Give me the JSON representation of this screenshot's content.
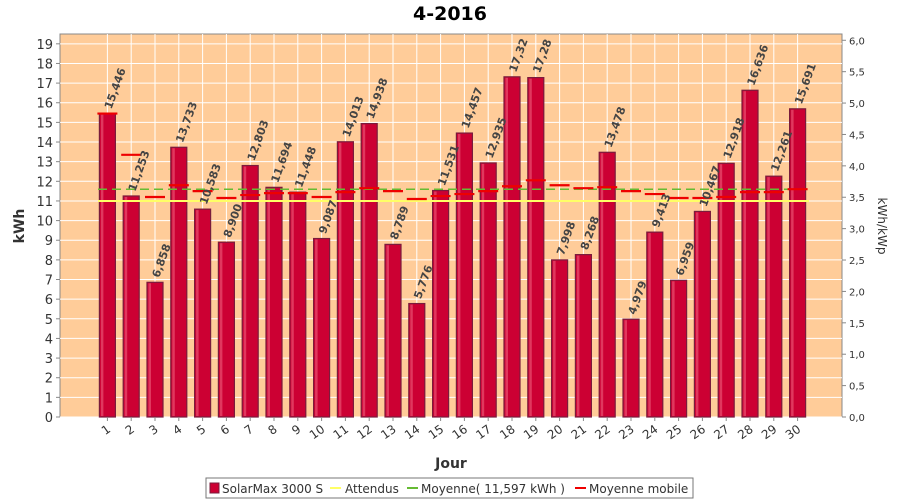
{
  "chart_data": {
    "type": "bar",
    "title": "4-2016",
    "xlabel": "Jour",
    "ylabel": "kWh",
    "y2label": "kWh/kWp",
    "ylim": [
      0,
      19.5
    ],
    "y2lim": [
      0,
      6.1
    ],
    "yticks": [
      "0",
      "1",
      "2",
      "3",
      "4",
      "5",
      "6",
      "7",
      "8",
      "9",
      "10",
      "11",
      "12",
      "13",
      "14",
      "15",
      "16",
      "17",
      "18",
      "19"
    ],
    "y2ticks": [
      "0,0",
      "0,5",
      "1,0",
      "1,5",
      "2,0",
      "2,5",
      "3,0",
      "3,5",
      "4,0",
      "4,5",
      "5,0",
      "5,5",
      "6,0"
    ],
    "categories": [
      "1",
      "2",
      "3",
      "4",
      "5",
      "6",
      "7",
      "8",
      "9",
      "10",
      "11",
      "12",
      "13",
      "14",
      "15",
      "16",
      "17",
      "18",
      "19",
      "20",
      "21",
      "22",
      "23",
      "24",
      "25",
      "26",
      "27",
      "28",
      "29",
      "30"
    ],
    "series": [
      {
        "name": "SolarMax 3000 S",
        "values": [
          15.446,
          11.253,
          6.858,
          13.733,
          10.583,
          8.9,
          12.803,
          11.694,
          11.448,
          9.087,
          14.013,
          14.938,
          8.789,
          5.776,
          11.531,
          14.457,
          12.935,
          17.32,
          17.28,
          7.998,
          8.268,
          13.478,
          4.979,
          9.413,
          6.959,
          10.467,
          12.918,
          16.636,
          12.261,
          15.691
        ],
        "labels": [
          "15,446",
          "11,253",
          "6,858",
          "13,733",
          "10,583",
          "8,900",
          "12,803",
          "11,694",
          "11,448",
          "9,087",
          "14,013",
          "14,938",
          "8,789",
          "5,776",
          "11,531",
          "14,457",
          "12,935",
          "17,32",
          "17,28",
          "7,998",
          "8,268",
          "13,478",
          "4,979",
          "9,413",
          "6,959",
          "10,467",
          "12,918",
          "16,636",
          "12,261",
          "15,691"
        ]
      },
      {
        "name": "Attendus",
        "value": 11.0
      },
      {
        "name": "Moyenne( 11,597 kWh )",
        "value": 11.597
      },
      {
        "name": "Moyenne mobile",
        "values": [
          15.45,
          13.35,
          11.2,
          11.8,
          11.5,
          11.15,
          11.3,
          11.4,
          11.4,
          11.2,
          11.45,
          11.65,
          11.5,
          11.1,
          11.25,
          11.35,
          11.5,
          11.75,
          12.05,
          11.8,
          11.65,
          11.7,
          11.5,
          11.35,
          11.15,
          11.15,
          11.2,
          11.45,
          11.45,
          11.6
        ]
      }
    ],
    "colors": {
      "plot_bg": "#ffcc99",
      "bar": "#cc0033",
      "bar_edge": "#7a1c3c",
      "attendus": "#ffff66",
      "moyenne": "#66bb33",
      "mobile": "#ee0000"
    },
    "grid": true,
    "legend_position": "bottom"
  }
}
